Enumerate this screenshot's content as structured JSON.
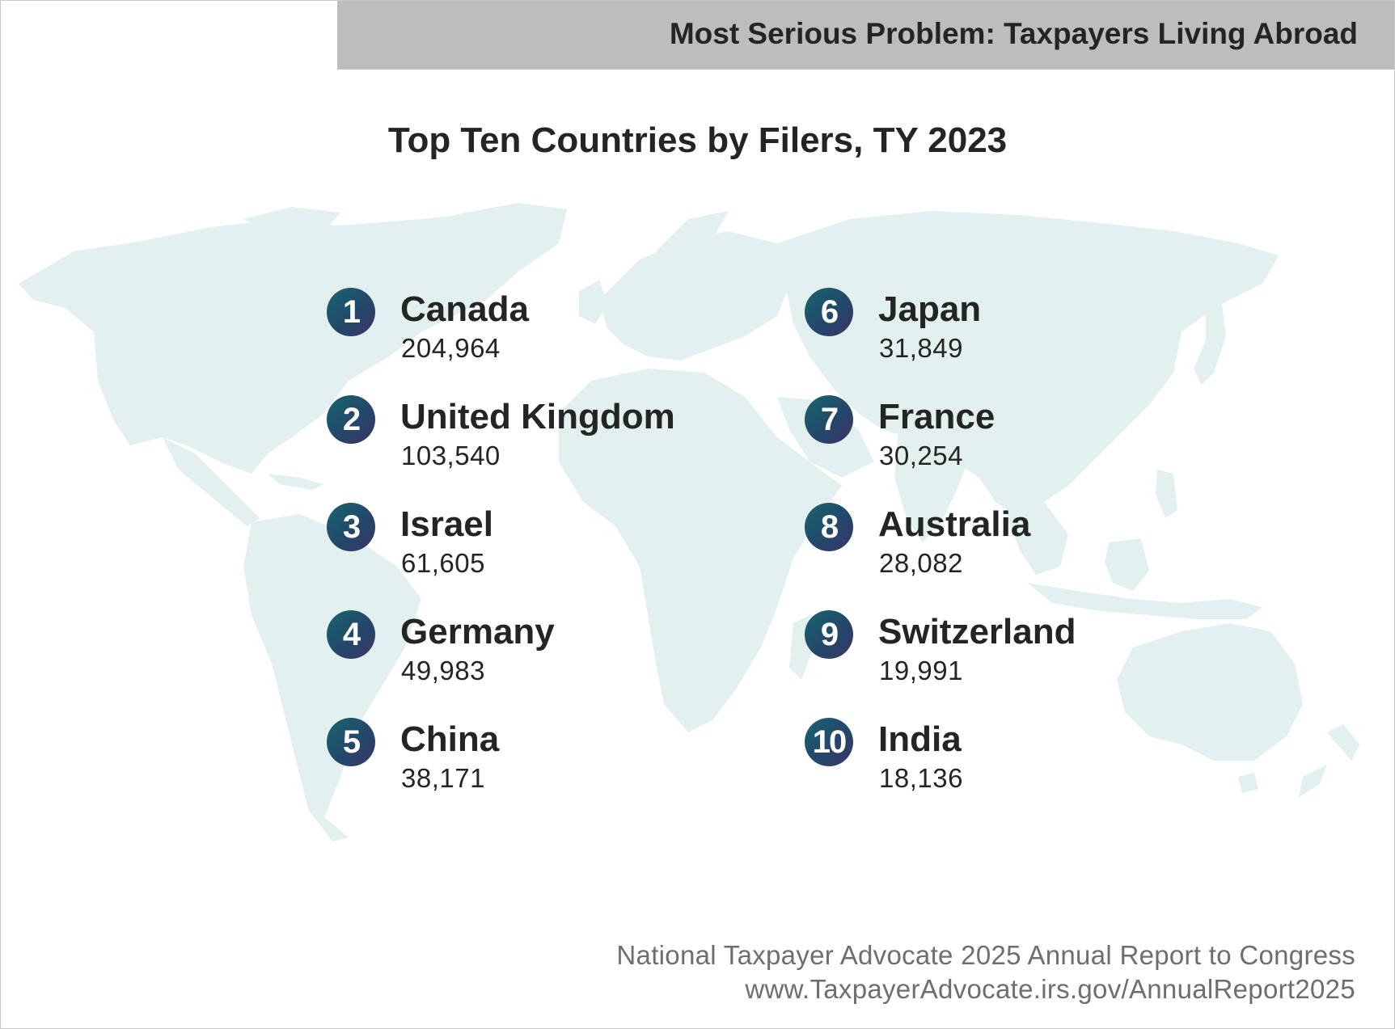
{
  "header": {
    "title": "Most Serious Problem: Taxpayers Living Abroad"
  },
  "colors": {
    "header_bar": "#bcbdbf",
    "map_fill": "#e3f0f0",
    "badge_gradient": [
      "#16666e",
      "#23476a",
      "#3b3568"
    ],
    "text": "#222426",
    "footer_text": "#6d6e70"
  },
  "chart_data": {
    "type": "table",
    "title": "Top Ten Countries by Filers, TY 2023",
    "columns": [
      "Rank",
      "Country",
      "Filers"
    ],
    "rows": [
      {
        "rank": "1",
        "country": "Canada",
        "filers": "204,964",
        "value": 204964
      },
      {
        "rank": "2",
        "country": "United Kingdom",
        "filers": "103,540",
        "value": 103540
      },
      {
        "rank": "3",
        "country": "Israel",
        "filers": "61,605",
        "value": 61605
      },
      {
        "rank": "4",
        "country": "Germany",
        "filers": "49,983",
        "value": 49983
      },
      {
        "rank": "5",
        "country": "China",
        "filers": "38,171",
        "value": 38171
      },
      {
        "rank": "6",
        "country": "Japan",
        "filers": "31,849",
        "value": 31849
      },
      {
        "rank": "7",
        "country": "France",
        "filers": "30,254",
        "value": 30254
      },
      {
        "rank": "8",
        "country": "Australia",
        "filers": "28,082",
        "value": 28082
      },
      {
        "rank": "9",
        "country": "Switzerland",
        "filers": "19,991",
        "value": 19991
      },
      {
        "rank": "10",
        "country": "India",
        "filers": "18,136",
        "value": 18136
      }
    ]
  },
  "footer": {
    "line1": "National Taxpayer Advocate 2025 Annual Report to Congress",
    "line2": "www.TaxpayerAdvocate.irs.gov/AnnualReport2025"
  }
}
